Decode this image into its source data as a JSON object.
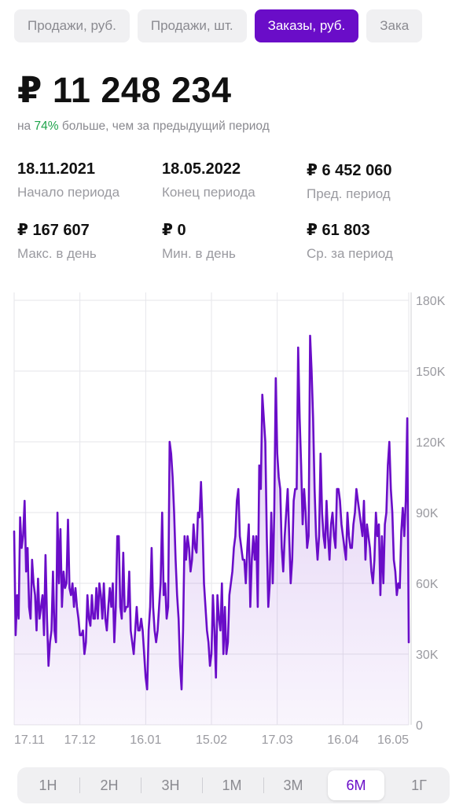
{
  "tabs": [
    {
      "label": "Продажи, руб.",
      "active": false
    },
    {
      "label": "Продажи, шт.",
      "active": false
    },
    {
      "label": "Заказы, руб.",
      "active": true
    },
    {
      "label": "Зака",
      "active": false
    }
  ],
  "summary": {
    "total": "₽ 11 248 234",
    "prefix": "на ",
    "percent": "74%",
    "suffix": " больше, чем за предыдущий период"
  },
  "stats": [
    {
      "value": "18.11.2021",
      "label": "Начало периода"
    },
    {
      "value": "18.05.2022",
      "label": "Конец периода"
    },
    {
      "value": "₽  6 452 060",
      "label": "Пред. период"
    },
    {
      "value": "₽ 167 607",
      "label": "Макс. в день"
    },
    {
      "value": "₽ 0",
      "label": "Мин. в день"
    },
    {
      "value": "₽ 61 803",
      "label": "Ср. за период"
    }
  ],
  "colors": {
    "accent": "#6a0dc8",
    "positive": "#1ea34a"
  },
  "chart_data": {
    "type": "line",
    "title": "",
    "xlabel": "",
    "ylabel": "",
    "ylim": [
      0,
      180000
    ],
    "y_ticks": [
      0,
      30000,
      60000,
      90000,
      120000,
      150000,
      180000
    ],
    "y_tick_labels": [
      "0",
      "30K",
      "60K",
      "90K",
      "120K",
      "150K",
      "180K"
    ],
    "x_tick_labels": [
      "17.11",
      "17.12",
      "16.01",
      "15.02",
      "17.03",
      "16.04",
      "16.05"
    ],
    "x_tick_days": [
      0,
      30,
      60,
      90,
      120,
      150,
      180
    ],
    "grid": true,
    "series": [
      {
        "values": [
          82000,
          38000,
          55000,
          45000,
          88000,
          75000,
          80000,
          95000,
          65000,
          75000,
          50000,
          45000,
          70000,
          60000,
          55000,
          40000,
          62000,
          45000,
          50000,
          55000,
          38000,
          72000,
          45000,
          25000,
          35000,
          40000,
          65000,
          40000,
          35000,
          90000,
          60000,
          83000,
          50000,
          65000,
          58000,
          60000,
          87000,
          58000,
          55000,
          60000,
          50000,
          58000,
          50000,
          45000,
          38000,
          38000,
          40000,
          30000,
          35000,
          55000,
          45000,
          42000,
          55000,
          45000,
          45000,
          58000,
          45000,
          60000,
          55000,
          45000,
          60000,
          45000,
          40000,
          50000,
          58000,
          50000,
          60000,
          35000,
          50000,
          80000,
          80000,
          50000,
          45000,
          73000,
          48000,
          50000,
          50000,
          65000,
          40000,
          35000,
          30000,
          40000,
          50000,
          40000,
          40000,
          45000,
          40000,
          30000,
          20000,
          15000,
          40000,
          50000,
          75000,
          50000,
          40000,
          35000,
          40000,
          50000,
          60000,
          90000,
          55000,
          60000,
          45000,
          50000,
          120000,
          115000,
          105000,
          90000,
          70000,
          55000,
          45000,
          25000,
          15000,
          40000,
          80000,
          70000,
          80000,
          75000,
          65000,
          70000,
          85000,
          75000,
          73000,
          90000,
          88000,
          103000,
          85000,
          60000,
          50000,
          40000,
          35000,
          25000,
          30000,
          55000,
          40000,
          20000,
          55000,
          45000,
          40000,
          60000,
          30000,
          50000,
          30000,
          35000,
          55000,
          60000,
          65000,
          75000,
          80000,
          95000,
          100000,
          80000,
          75000,
          70000,
          70000,
          60000,
          75000,
          85000,
          50000,
          70000,
          80000,
          70000,
          80000,
          50000,
          110000,
          100000,
          140000,
          130000,
          120000,
          80000,
          50000,
          60000,
          90000,
          60000,
          90000,
          147000,
          115000,
          105000,
          100000,
          75000,
          65000,
          80000,
          90000,
          100000,
          80000,
          60000,
          70000,
          95000,
          100000,
          100000,
          160000,
          130000,
          110000,
          85000,
          100000,
          90000,
          75000,
          80000,
          165000,
          150000,
          130000,
          100000,
          80000,
          70000,
          80000,
          115000,
          90000,
          80000,
          75000,
          95000,
          80000,
          70000,
          85000,
          90000,
          80000,
          75000,
          100000,
          100000,
          95000,
          85000,
          80000,
          75000,
          70000,
          90000,
          80000,
          75000,
          75000,
          85000,
          90000,
          100000,
          95000,
          90000,
          85000,
          80000,
          95000,
          70000,
          85000,
          80000,
          75000,
          65000,
          60000,
          70000,
          90000,
          80000,
          85000,
          55000,
          80000,
          60000,
          85000,
          90000,
          110000,
          120000,
          100000,
          90000,
          70000,
          65000,
          55000,
          60000,
          58000,
          82000,
          92000,
          80000,
          95000,
          130000,
          35000
        ]
      }
    ]
  },
  "periods": [
    {
      "label": "1Н",
      "active": false
    },
    {
      "label": "2Н",
      "active": false
    },
    {
      "label": "3Н",
      "active": false
    },
    {
      "label": "1М",
      "active": false
    },
    {
      "label": "3М",
      "active": false
    },
    {
      "label": "6М",
      "active": true
    },
    {
      "label": "1Г",
      "active": false
    }
  ]
}
